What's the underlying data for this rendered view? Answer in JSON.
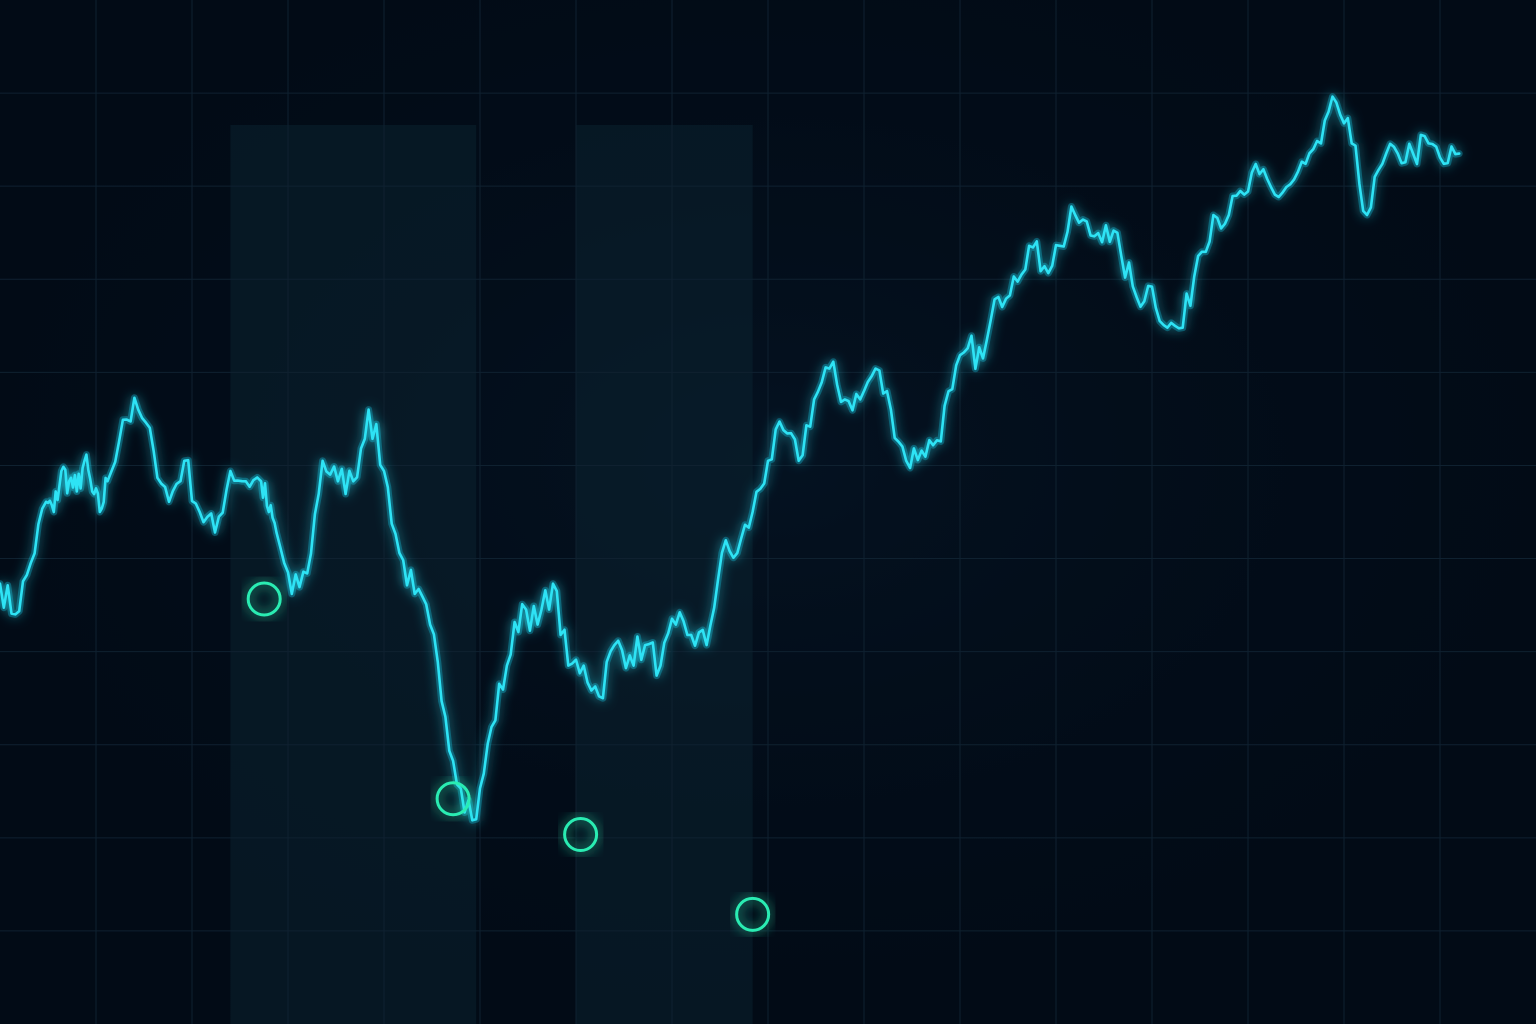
{
  "colors": {
    "background": "#020b16",
    "grid": "#0f2130",
    "shaded_band": "#0b2230",
    "line": "#2fe3f5",
    "line_glow": "#0fb8d8",
    "marker": "#29ecb2"
  },
  "chart_data": {
    "type": "line",
    "title": "",
    "xlabel": "",
    "ylabel": "",
    "grid": true,
    "legend": "none",
    "xlim": [
      0,
      100
    ],
    "ylim": [
      0,
      100
    ],
    "x": [
      0,
      1,
      2,
      3,
      3.5,
      4,
      4.5,
      5,
      5.5,
      6,
      6.5,
      7,
      8,
      9,
      10,
      11,
      12,
      13,
      14,
      15,
      16,
      17,
      17.5,
      18,
      19,
      20,
      21,
      22,
      23,
      24,
      25,
      26,
      27,
      28,
      29,
      30,
      31,
      32,
      33,
      34,
      35,
      36,
      37,
      38,
      39,
      40,
      41,
      42,
      43,
      44,
      45,
      46,
      47,
      48,
      49,
      50,
      51,
      52,
      53,
      54,
      55,
      56,
      57,
      58,
      59,
      60,
      61,
      62,
      63,
      64,
      65,
      66,
      67,
      68,
      69,
      70,
      71,
      72,
      73,
      74,
      75,
      76,
      77,
      78,
      79,
      80,
      81,
      82,
      83,
      84,
      85,
      86,
      87,
      88,
      89,
      90,
      91,
      92,
      93,
      94,
      95
    ],
    "y": [
      43,
      40,
      45,
      51,
      50,
      54,
      53,
      52,
      55,
      52,
      50,
      53,
      59,
      60,
      56,
      51,
      55,
      50,
      48,
      54,
      53,
      53,
      50,
      48,
      42,
      44,
      55,
      53,
      53,
      60,
      54,
      46,
      42,
      39,
      30,
      23,
      20,
      29,
      35,
      41,
      39,
      43,
      35,
      35,
      32,
      37,
      36,
      37,
      35,
      39,
      38,
      37,
      46,
      46,
      50,
      55,
      58,
      55,
      61,
      64,
      61,
      61,
      64,
      60,
      55,
      56,
      57,
      62,
      66,
      65,
      71,
      73,
      76,
      74,
      76,
      79,
      77,
      78,
      75,
      71,
      72,
      68,
      68,
      75,
      79,
      79,
      81,
      83,
      81,
      82,
      84,
      86,
      90,
      86,
      79,
      84,
      85,
      85,
      86,
      84,
      85
    ],
    "markers": [
      {
        "x": 17.2,
        "y": 41.5
      },
      {
        "x": 29.5,
        "y": 22
      },
      {
        "x": 37.8,
        "y": 18.5
      },
      {
        "x": 49,
        "y": 10.7
      }
    ],
    "shaded_x_ranges": [
      [
        15,
        31
      ],
      [
        37.5,
        49
      ]
    ]
  }
}
